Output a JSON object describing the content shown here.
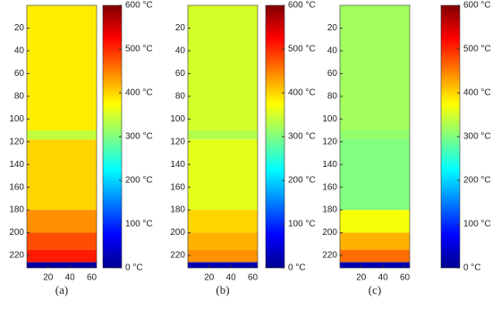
{
  "chart_data": [
    {
      "type": "heatmap",
      "caption": "(a)",
      "colormap": "jet",
      "xlim": [
        0.5,
        64.5
      ],
      "xticks": [
        20,
        40,
        60
      ],
      "ylim": [
        0,
        231
      ],
      "yticks": [
        20,
        40,
        60,
        80,
        100,
        120,
        140,
        160,
        180,
        200,
        220
      ],
      "clim": [
        0,
        600
      ],
      "cticks": [
        {
          "value": 0,
          "label": "0 °C"
        },
        {
          "value": 100,
          "label": "100 °C"
        },
        {
          "value": 200,
          "label": "200 °C"
        },
        {
          "value": 300,
          "label": "300 °C"
        },
        {
          "value": 400,
          "label": "400 °C"
        },
        {
          "value": 500,
          "label": "500 °C"
        },
        {
          "value": 600,
          "label": "600 °C"
        }
      ],
      "y_edges": [
        0,
        110,
        118,
        180,
        200,
        215,
        226,
        231
      ],
      "values": [
        385,
        340,
        400,
        440,
        480,
        510,
        20
      ]
    },
    {
      "type": "heatmap",
      "caption": "(b)",
      "colormap": "jet",
      "xlim": [
        0.5,
        64.5
      ],
      "xticks": [
        20,
        40,
        60
      ],
      "ylim": [
        0,
        231
      ],
      "yticks": [
        20,
        40,
        60,
        80,
        100,
        120,
        140,
        160,
        180,
        200,
        220
      ],
      "clim": [
        0,
        600
      ],
      "cticks": [
        {
          "value": 0,
          "label": "0 °C"
        },
        {
          "value": 100,
          "label": "100 °C"
        },
        {
          "value": 200,
          "label": "200 °C"
        },
        {
          "value": 300,
          "label": "300 °C"
        },
        {
          "value": 400,
          "label": "400 °C"
        },
        {
          "value": 500,
          "label": "500 °C"
        },
        {
          "value": 600,
          "label": "600 °C"
        }
      ],
      "y_edges": [
        0,
        110,
        118,
        180,
        200,
        215,
        226,
        231
      ],
      "values": [
        350,
        330,
        360,
        400,
        420,
        440,
        30
      ]
    },
    {
      "type": "heatmap",
      "caption": "(c)",
      "colormap": "jet",
      "xlim": [
        0.5,
        64.5
      ],
      "xticks": [
        20,
        40,
        60
      ],
      "ylim": [
        0,
        231
      ],
      "yticks": [
        20,
        40,
        60,
        80,
        100,
        120,
        140,
        160,
        180,
        200,
        220
      ],
      "clim": [
        0,
        600
      ],
      "cticks": [
        {
          "value": 0,
          "label": "0 °C"
        },
        {
          "value": 100,
          "label": "100 °C"
        },
        {
          "value": 200,
          "label": "200 °C"
        },
        {
          "value": 300,
          "label": "300 °C"
        },
        {
          "value": 400,
          "label": "400 °C"
        },
        {
          "value": 500,
          "label": "500 °C"
        },
        {
          "value": 600,
          "label": "600 °C"
        }
      ],
      "y_edges": [
        0,
        110,
        118,
        180,
        200,
        215,
        226,
        231
      ],
      "values": [
        320,
        310,
        300,
        370,
        420,
        460,
        30
      ]
    }
  ]
}
